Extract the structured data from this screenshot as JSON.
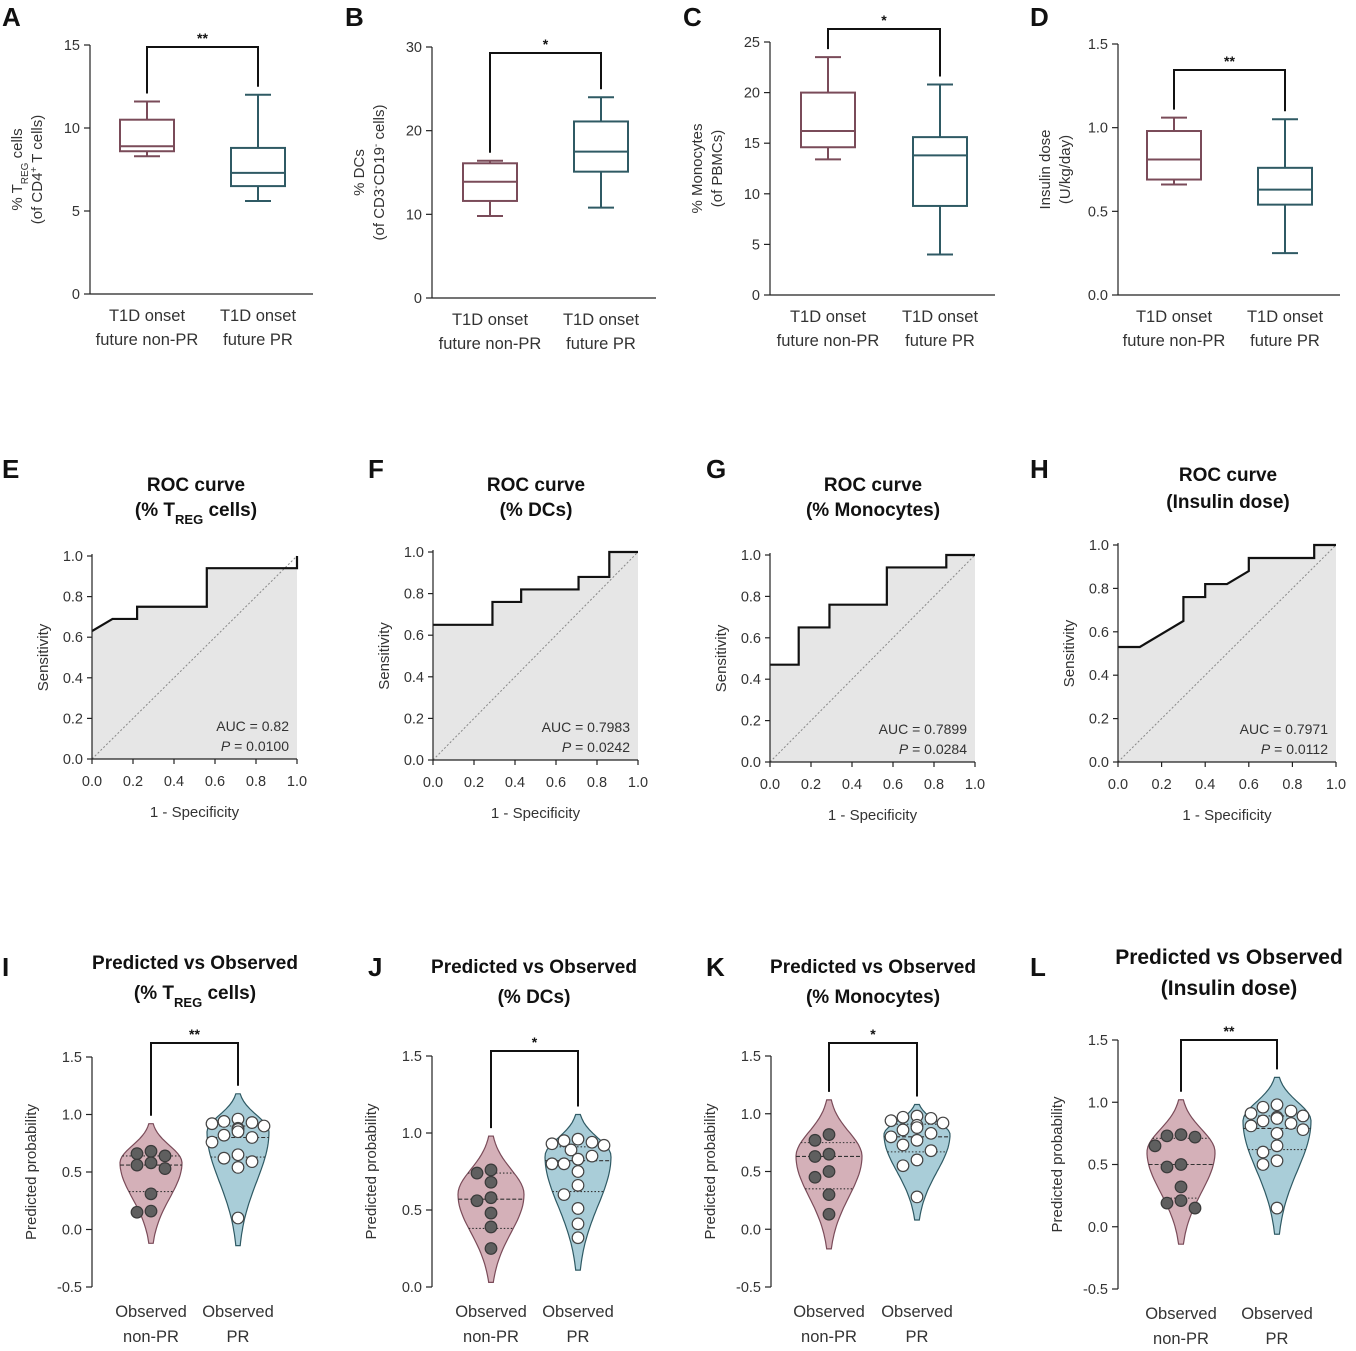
{
  "colors": {
    "nonpr": "#7a4b59",
    "pr": "#2f5a64",
    "violin_nonpr": "#d4b0b8",
    "violin_pr": "#a9cdd8",
    "roc_fill": "#e6e6e6",
    "axis": "#222222"
  },
  "boxplots": [
    {
      "letter": "A",
      "ylabel_line1": "% T",
      "ylabel_sub": "REG",
      "ylabel_tail": " cells",
      "ylabel_line2": "(of CD4",
      "ylabel_line2_sup": "+",
      "ylabel_line2_tail": " T cells)",
      "ylim": [
        0,
        15
      ],
      "yticks": [
        "0",
        "5",
        "10",
        "15"
      ],
      "yticks_v": [
        0,
        5,
        10,
        15
      ],
      "sig": "**",
      "groups": [
        {
          "line1": "T1D onset",
          "line2": "future non-PR",
          "min": 8.3,
          "q1": 8.6,
          "median": 8.9,
          "q3": 10.5,
          "max": 11.6
        },
        {
          "line1": "T1D onset",
          "line2": "future PR",
          "min": 5.6,
          "q1": 6.5,
          "median": 7.3,
          "q3": 8.8,
          "max": 12.0
        }
      ]
    },
    {
      "letter": "B",
      "ylabel_line1": "% DCs",
      "ylabel_line2": "(of CD3",
      "ylabel_line2_sup": "-",
      "ylabel_line2_mid": "CD19",
      "ylabel_line2_sup2": "-",
      "ylabel_line2_tail": " cells)",
      "ylim": [
        0,
        30
      ],
      "yticks": [
        "0",
        "10",
        "20",
        "30"
      ],
      "yticks_v": [
        0,
        10,
        20,
        30
      ],
      "sig": "*",
      "groups": [
        {
          "line1": "T1D onset",
          "line2": "future non-PR",
          "min": 9.8,
          "q1": 11.6,
          "median": 13.9,
          "q3": 16.1,
          "max": 16.4
        },
        {
          "line1": "T1D onset",
          "line2": "future PR",
          "min": 10.8,
          "q1": 15.1,
          "median": 17.5,
          "q3": 21.1,
          "max": 24.0
        }
      ]
    },
    {
      "letter": "C",
      "ylabel_line1": "% Monocytes",
      "ylabel_line2": "(of PBMCs)",
      "ylim": [
        0,
        25
      ],
      "yticks": [
        "0",
        "5",
        "10",
        "15",
        "20",
        "25"
      ],
      "yticks_v": [
        0,
        5,
        10,
        15,
        20,
        25
      ],
      "sig": "*",
      "groups": [
        {
          "line1": "T1D onset",
          "line2": "future non-PR",
          "min": 13.4,
          "q1": 14.6,
          "median": 16.2,
          "q3": 20.0,
          "max": 23.5
        },
        {
          "line1": "T1D onset",
          "line2": "future PR",
          "min": 4.0,
          "q1": 8.8,
          "median": 13.8,
          "q3": 15.6,
          "max": 20.8
        }
      ]
    },
    {
      "letter": "D",
      "ylabel_line1": "Insulin dose",
      "ylabel_line2": "(U/kg/day)",
      "ylim": [
        0,
        1.5
      ],
      "yticks": [
        "0.0",
        "0.5",
        "1.0",
        "1.5"
      ],
      "yticks_v": [
        0,
        0.5,
        1.0,
        1.5
      ],
      "sig": "**",
      "groups": [
        {
          "line1": "T1D onset",
          "line2": "future non-PR",
          "min": 0.66,
          "q1": 0.69,
          "median": 0.81,
          "q3": 0.98,
          "max": 1.06
        },
        {
          "line1": "T1D onset",
          "line2": "future PR",
          "min": 0.25,
          "q1": 0.54,
          "median": 0.63,
          "q3": 0.76,
          "max": 1.05
        }
      ]
    }
  ],
  "roc": [
    {
      "letter": "E",
      "title": "ROC curve",
      "subtitle_pre": "(% T",
      "subtitle_sub": "REG",
      "subtitle_post": " cells)",
      "auc": "AUC = 0.82",
      "p_label": "P",
      "p_value": " = 0.0100",
      "points": [
        [
          0,
          0.63
        ],
        [
          0.1,
          0.69
        ],
        [
          0.22,
          0.69
        ],
        [
          0.22,
          0.75
        ],
        [
          0.56,
          0.75
        ],
        [
          0.56,
          0.94
        ],
        [
          1.0,
          0.94
        ],
        [
          1.0,
          1.0
        ]
      ]
    },
    {
      "letter": "F",
      "title": "ROC curve",
      "subtitle_pre": "(% DCs)",
      "subtitle_sub": "",
      "subtitle_post": "",
      "auc": "AUC = 0.7983",
      "p_label": "P",
      "p_value": " = 0.0242",
      "points": [
        [
          0,
          0.65
        ],
        [
          0.29,
          0.65
        ],
        [
          0.29,
          0.76
        ],
        [
          0.43,
          0.76
        ],
        [
          0.43,
          0.82
        ],
        [
          0.71,
          0.82
        ],
        [
          0.71,
          0.88
        ],
        [
          0.86,
          0.88
        ],
        [
          0.86,
          1.0
        ],
        [
          1.0,
          1.0
        ]
      ]
    },
    {
      "letter": "G",
      "title": "ROC curve",
      "subtitle_pre": "(% Monocytes)",
      "subtitle_sub": "",
      "subtitle_post": "",
      "auc": "AUC = 0.7899",
      "p_label": "P",
      "p_value": " = 0.0284",
      "points": [
        [
          0,
          0.47
        ],
        [
          0.14,
          0.47
        ],
        [
          0.14,
          0.65
        ],
        [
          0.29,
          0.65
        ],
        [
          0.29,
          0.76
        ],
        [
          0.57,
          0.76
        ],
        [
          0.57,
          0.94
        ],
        [
          0.86,
          0.94
        ],
        [
          0.86,
          1.0
        ],
        [
          1.0,
          1.0
        ]
      ]
    },
    {
      "letter": "H",
      "title": "ROC curve",
      "subtitle_pre": "(Insulin dose)",
      "subtitle_sub": "",
      "subtitle_post": "",
      "auc": "AUC = 0.7971",
      "p_label": "P",
      "p_value": " = 0.0112",
      "points": [
        [
          0,
          0.53
        ],
        [
          0.1,
          0.53
        ],
        [
          0.3,
          0.65
        ],
        [
          0.3,
          0.76
        ],
        [
          0.4,
          0.76
        ],
        [
          0.4,
          0.82
        ],
        [
          0.5,
          0.82
        ],
        [
          0.6,
          0.88
        ],
        [
          0.6,
          0.94
        ],
        [
          0.9,
          0.94
        ],
        [
          0.9,
          1.0
        ],
        [
          1.0,
          1.0
        ]
      ]
    }
  ],
  "roc_axes": {
    "xlabel": "1 - Specificity",
    "ylabel": "Sensitivity",
    "ticks": [
      "0.0",
      "0.2",
      "0.4",
      "0.6",
      "0.8",
      "1.0"
    ],
    "ticks_v": [
      0,
      0.2,
      0.4,
      0.6,
      0.8,
      1.0
    ]
  },
  "violins": [
    {
      "letter": "I",
      "title": "Predicted vs Observed",
      "subtitle_pre": "(% T",
      "subtitle_sub": "REG",
      "subtitle_post": " cells)",
      "sig": "**",
      "ylim": [
        -0.5,
        1.5
      ],
      "yticks": [
        "-0.5",
        "0.0",
        "0.5",
        "1.0",
        "1.5"
      ],
      "yticks_v": [
        -0.5,
        0,
        0.5,
        1.0,
        1.5
      ],
      "groups": [
        {
          "line1": "Observed",
          "line2": "non-PR",
          "range": [
            -0.12,
            0.92
          ],
          "center": 0.58,
          "width": 0.34,
          "quartiles": [
            0.33,
            0.56,
            0.64
          ],
          "points": [
            0.68,
            0.66,
            0.64,
            0.58,
            0.56,
            0.53,
            0.31,
            0.16,
            0.15
          ]
        },
        {
          "line1": "Observed",
          "line2": "PR",
          "range": [
            -0.14,
            1.18
          ],
          "center": 0.85,
          "width": 0.38,
          "quartiles": [
            0.63,
            0.8,
            0.9
          ],
          "points": [
            0.96,
            0.94,
            0.93,
            0.92,
            0.9,
            0.88,
            0.87,
            0.85,
            0.82,
            0.8,
            0.76,
            0.65,
            0.62,
            0.59,
            0.54,
            0.1
          ]
        }
      ]
    },
    {
      "letter": "J",
      "title": "Predicted vs Observed",
      "subtitle_pre": "(% DCs)",
      "subtitle_sub": "",
      "subtitle_post": "",
      "sig": "*",
      "ylim": [
        0,
        1.5
      ],
      "yticks": [
        "0.0",
        "0.5",
        "1.0",
        "1.5"
      ],
      "yticks_v": [
        0,
        0.5,
        1.0,
        1.5
      ],
      "groups": [
        {
          "line1": "Observed",
          "line2": "non-PR",
          "range": [
            0.03,
            0.98
          ],
          "center": 0.6,
          "width": 0.36,
          "quartiles": [
            0.38,
            0.57,
            0.74
          ],
          "points": [
            0.76,
            0.74,
            0.68,
            0.58,
            0.56,
            0.48,
            0.39,
            0.25
          ]
        },
        {
          "line1": "Observed",
          "line2": "PR",
          "range": [
            0.11,
            1.12
          ],
          "center": 0.85,
          "width": 0.38,
          "quartiles": [
            0.62,
            0.82,
            0.91
          ],
          "points": [
            0.96,
            0.95,
            0.94,
            0.93,
            0.92,
            0.89,
            0.85,
            0.83,
            0.8,
            0.8,
            0.75,
            0.66,
            0.6,
            0.51,
            0.41,
            0.32
          ]
        }
      ]
    },
    {
      "letter": "K",
      "title": "Predicted vs Observed",
      "subtitle_pre": "(% Monocytes)",
      "subtitle_sub": "",
      "subtitle_post": "",
      "sig": "*",
      "ylim": [
        -0.5,
        1.5
      ],
      "yticks": [
        "-0.5",
        "0.0",
        "0.5",
        "1.0",
        "1.5"
      ],
      "yticks_v": [
        -0.5,
        0,
        0.5,
        1.0,
        1.5
      ],
      "groups": [
        {
          "line1": "Observed",
          "line2": "non-PR",
          "range": [
            -0.17,
            1.12
          ],
          "center": 0.63,
          "width": 0.36,
          "quartiles": [
            0.35,
            0.63,
            0.75
          ],
          "points": [
            0.82,
            0.77,
            0.65,
            0.63,
            0.5,
            0.45,
            0.3,
            0.13
          ]
        },
        {
          "line1": "Observed",
          "line2": "PR",
          "range": [
            0.08,
            1.08
          ],
          "center": 0.82,
          "width": 0.38,
          "quartiles": [
            0.67,
            0.8,
            0.91
          ],
          "points": [
            0.98,
            0.97,
            0.96,
            0.94,
            0.92,
            0.9,
            0.88,
            0.86,
            0.83,
            0.8,
            0.77,
            0.73,
            0.68,
            0.6,
            0.55,
            0.28
          ]
        }
      ]
    },
    {
      "letter": "L",
      "title": "Predicted vs Observed",
      "subtitle_pre": "(Insulin dose)",
      "subtitle_sub": "",
      "subtitle_post": "",
      "sig": "**",
      "ylim": [
        -0.5,
        1.5
      ],
      "yticks": [
        "-0.5",
        "0.0",
        "0.5",
        "1.0",
        "1.5"
      ],
      "yticks_v": [
        -0.5,
        0,
        0.5,
        1.0,
        1.5
      ],
      "groups": [
        {
          "line1": "Observed",
          "line2": "non-PR",
          "range": [
            -0.14,
            1.02
          ],
          "center": 0.6,
          "width": 0.36,
          "quartiles": [
            0.23,
            0.5,
            0.71
          ],
          "points": [
            0.74,
            0.73,
            0.72,
            0.65,
            0.5,
            0.48,
            0.32,
            0.21,
            0.19,
            0.15
          ]
        },
        {
          "line1": "Observed",
          "line2": "PR",
          "range": [
            -0.06,
            1.2
          ],
          "center": 0.85,
          "width": 0.38,
          "quartiles": [
            0.62,
            0.79,
            0.89
          ],
          "points": [
            0.98,
            0.96,
            0.93,
            0.91,
            0.89,
            0.88,
            0.87,
            0.85,
            0.83,
            0.81,
            0.78,
            0.75,
            0.65,
            0.6,
            0.53,
            0.5,
            0.15
          ]
        }
      ]
    }
  ],
  "chart_data": [
    {
      "type": "box",
      "panel": "A",
      "categories": [
        "T1D onset future non-PR",
        "T1D onset future PR"
      ],
      "ylabel": "% TREG cells (of CD4+ T cells)",
      "ylim": [
        0,
        15
      ]
    },
    {
      "type": "box",
      "panel": "B",
      "categories": [
        "T1D onset future non-PR",
        "T1D onset future PR"
      ],
      "ylabel": "% DCs (of CD3-CD19- cells)",
      "ylim": [
        0,
        30
      ]
    },
    {
      "type": "box",
      "panel": "C",
      "categories": [
        "T1D onset future non-PR",
        "T1D onset future PR"
      ],
      "ylabel": "% Monocytes (of PBMCs)",
      "ylim": [
        0,
        25
      ]
    },
    {
      "type": "box",
      "panel": "D",
      "categories": [
        "T1D onset future non-PR",
        "T1D onset future PR"
      ],
      "ylabel": "Insulin dose (U/kg/day)",
      "ylim": [
        0,
        1.5
      ]
    },
    {
      "type": "line",
      "panel": "E",
      "title": "ROC curve (% TREG cells)",
      "xlabel": "1 - Specificity",
      "ylabel": "Sensitivity",
      "auc": 0.82,
      "p": 0.01
    },
    {
      "type": "line",
      "panel": "F",
      "title": "ROC curve (% DCs)",
      "xlabel": "1 - Specificity",
      "ylabel": "Sensitivity",
      "auc": 0.7983,
      "p": 0.0242
    },
    {
      "type": "line",
      "panel": "G",
      "title": "ROC curve (% Monocytes)",
      "xlabel": "1 - Specificity",
      "ylabel": "Sensitivity",
      "auc": 0.7899,
      "p": 0.0284
    },
    {
      "type": "line",
      "panel": "H",
      "title": "ROC curve (Insulin dose)",
      "xlabel": "1 - Specificity",
      "ylabel": "Sensitivity",
      "auc": 0.7971,
      "p": 0.0112
    },
    {
      "type": "violin",
      "panel": "I",
      "title": "Predicted vs Observed (% TREG cells)",
      "ylabel": "Predicted probability",
      "categories": [
        "Observed non-PR",
        "Observed PR"
      ]
    },
    {
      "type": "violin",
      "panel": "J",
      "title": "Predicted vs Observed (% DCs)",
      "ylabel": "Predicted probability",
      "categories": [
        "Observed non-PR",
        "Observed PR"
      ]
    },
    {
      "type": "violin",
      "panel": "K",
      "title": "Predicted vs Observed (% Monocytes)",
      "ylabel": "Predicted probability",
      "categories": [
        "Observed non-PR",
        "Observed PR"
      ]
    },
    {
      "type": "violin",
      "panel": "L",
      "title": "Predicted vs Observed (Insulin dose)",
      "ylabel": "Predicted probability",
      "categories": [
        "Observed non-PR",
        "Observed PR"
      ]
    }
  ],
  "violin_axes": {
    "ylabel": "Predicted probability"
  }
}
